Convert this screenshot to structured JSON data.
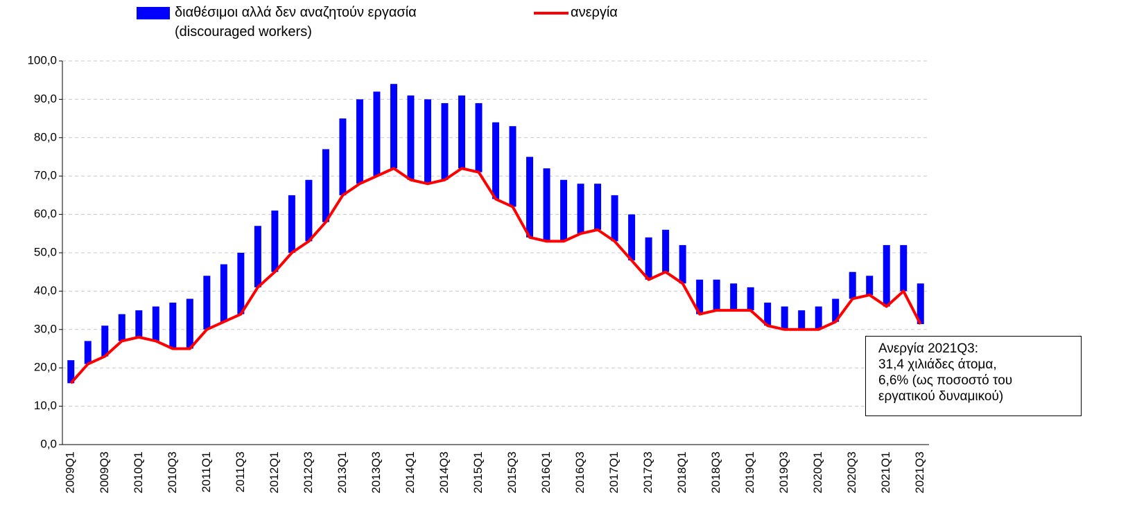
{
  "chart_data": {
    "type": "bar",
    "categories": [
      "2009Q1",
      null,
      "2009Q3",
      null,
      "2010Q1",
      null,
      "2010Q3",
      null,
      "2011Q1",
      null,
      "2011Q3",
      null,
      "2012Q1",
      null,
      "2012Q3",
      null,
      "2013Q1",
      null,
      "2013Q3",
      null,
      "2014Q1",
      null,
      "2014Q3",
      null,
      "2015Q1",
      null,
      "2015Q3",
      null,
      "2016Q1",
      null,
      "2016Q3",
      null,
      "2017Q1",
      null,
      "2017Q3",
      null,
      "2018Q1",
      null,
      "2018Q3",
      null,
      "2019Q1",
      null,
      "2019Q3",
      null,
      "2020Q1",
      null,
      "2020Q3",
      null,
      "2021Q1",
      null,
      "2021Q3"
    ],
    "series": [
      {
        "name": "διαθέσιμοι αλλά δεν αναζητούν εργασία\n(discouraged workers)",
        "type": "bar",
        "color": "#0000ff",
        "values": [
          6,
          6,
          8,
          7,
          7,
          9,
          12,
          13,
          14,
          15,
          16,
          16,
          16,
          15,
          16,
          19,
          20,
          22,
          22,
          22,
          22,
          22,
          20,
          19,
          18,
          20,
          21,
          21,
          19,
          16,
          13,
          12,
          12,
          12,
          11,
          11,
          10,
          9,
          8,
          7,
          6,
          6,
          6,
          5,
          6,
          6,
          7,
          5,
          16,
          12,
          10.6
        ]
      },
      {
        "name": "ανεργία",
        "type": "line",
        "color": "#ff0000",
        "values": [
          16,
          21,
          23,
          27,
          28,
          27,
          25,
          25,
          30,
          32,
          34,
          41,
          45,
          50,
          53,
          58,
          65,
          68,
          70,
          72,
          69,
          68,
          69,
          72,
          71,
          64,
          62,
          54,
          53,
          53,
          55,
          56,
          53,
          48,
          43,
          45,
          42,
          34,
          35,
          35,
          35,
          31,
          30,
          30,
          30,
          32,
          38,
          39,
          36,
          40,
          31.4
        ]
      }
    ],
    "ylim": [
      0,
      100
    ],
    "yticks": [
      {
        "value": 0,
        "label": "0,0"
      },
      {
        "value": 10,
        "label": "10,0"
      },
      {
        "value": 20,
        "label": "20,0"
      },
      {
        "value": 30,
        "label": "30,0"
      },
      {
        "value": 40,
        "label": "40,0"
      },
      {
        "value": 50,
        "label": "50,0"
      },
      {
        "value": 60,
        "label": "60,0"
      },
      {
        "value": 70,
        "label": "70,0"
      },
      {
        "value": 80,
        "label": "80,0"
      },
      {
        "value": 90,
        "label": "90,0"
      },
      {
        "value": 100,
        "label": "100,0"
      }
    ],
    "grid": true,
    "annotation": "Ανεργία 2021Q3:\n31,4 χιλιάδες άτομα,\n6,6% (ως ποσοστό του\nεργατικού δυναμικού)"
  }
}
